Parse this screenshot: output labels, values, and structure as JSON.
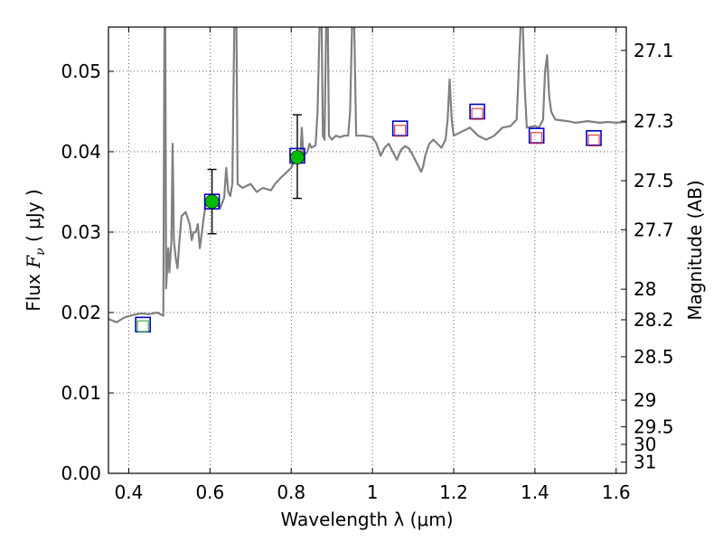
{
  "chart_data": {
    "type": "scatter",
    "xlabel": "Wavelength  λ (μm)",
    "ylabel_prefix": "Flux  ",
    "ylabel_var": "F",
    "ylabel_sub": "ν",
    "ylabel_suffix": "  ( μJy )",
    "y2label": "Magnitude (AB)",
    "xlim": [
      0.35,
      1.625
    ],
    "ylim": [
      0.0,
      0.0555
    ],
    "grid": true,
    "x_ticks": [
      0.4,
      0.6,
      0.8,
      1.0,
      1.2,
      1.4,
      1.6
    ],
    "x_tick_labels": [
      "0.4",
      "0.6",
      "0.8",
      "1",
      "1.2",
      "1.4",
      "1.6"
    ],
    "y_ticks": [
      0.0,
      0.01,
      0.02,
      0.03,
      0.04,
      0.05
    ],
    "y_tick_labels": [
      "0.00",
      "0.01",
      "0.02",
      "0.03",
      "0.04",
      "0.05"
    ],
    "y2_ticks": [
      {
        "flux": 0.0526,
        "label": "27.1"
      },
      {
        "flux": 0.0438,
        "label": "27.3"
      },
      {
        "flux": 0.0364,
        "label": "27.5"
      },
      {
        "flux": 0.0303,
        "label": "27.7"
      },
      {
        "flux": 0.0229,
        "label": "28"
      },
      {
        "flux": 0.0191,
        "label": "28.2"
      },
      {
        "flux": 0.0145,
        "label": "28.5"
      },
      {
        "flux": 0.0091,
        "label": "29"
      },
      {
        "flux": 0.0058,
        "label": "29.5"
      },
      {
        "flux": 0.0036,
        "label": "30"
      },
      {
        "flux": 0.0014,
        "label": "31"
      }
    ],
    "series": [
      {
        "name": "model_spectrum",
        "style": "line",
        "color": "#808080",
        "points": [
          [
            0.35,
            0.0192
          ],
          [
            0.37,
            0.0188
          ],
          [
            0.39,
            0.0194
          ],
          [
            0.41,
            0.0197
          ],
          [
            0.43,
            0.0199
          ],
          [
            0.45,
            0.0198
          ],
          [
            0.47,
            0.02
          ],
          [
            0.485,
            0.0196
          ],
          [
            0.488,
            0.056
          ],
          [
            0.49,
            0.056
          ],
          [
            0.492,
            0.023
          ],
          [
            0.497,
            0.028
          ],
          [
            0.5,
            0.025
          ],
          [
            0.505,
            0.029
          ],
          [
            0.508,
            0.041
          ],
          [
            0.511,
            0.029
          ],
          [
            0.515,
            0.027
          ],
          [
            0.52,
            0.0255
          ],
          [
            0.525,
            0.029
          ],
          [
            0.53,
            0.032
          ],
          [
            0.54,
            0.0325
          ],
          [
            0.55,
            0.031
          ],
          [
            0.555,
            0.029
          ],
          [
            0.56,
            0.03
          ],
          [
            0.565,
            0.03
          ],
          [
            0.57,
            0.031
          ],
          [
            0.575,
            0.028
          ],
          [
            0.58,
            0.03
          ],
          [
            0.585,
            0.032
          ],
          [
            0.59,
            0.0335
          ],
          [
            0.6,
            0.034
          ],
          [
            0.615,
            0.0335
          ],
          [
            0.625,
            0.033
          ],
          [
            0.635,
            0.0343
          ],
          [
            0.64,
            0.038
          ],
          [
            0.645,
            0.035
          ],
          [
            0.65,
            0.0345
          ],
          [
            0.655,
            0.036
          ],
          [
            0.66,
            0.056
          ],
          [
            0.665,
            0.056
          ],
          [
            0.668,
            0.036
          ],
          [
            0.68,
            0.0355
          ],
          [
            0.7,
            0.036
          ],
          [
            0.715,
            0.035
          ],
          [
            0.73,
            0.0355
          ],
          [
            0.75,
            0.0352
          ],
          [
            0.76,
            0.036
          ],
          [
            0.775,
            0.0368
          ],
          [
            0.79,
            0.0375
          ],
          [
            0.8,
            0.038
          ],
          [
            0.81,
            0.039
          ],
          [
            0.818,
            0.0395
          ],
          [
            0.822,
            0.0388
          ],
          [
            0.826,
            0.043
          ],
          [
            0.83,
            0.0395
          ],
          [
            0.84,
            0.04
          ],
          [
            0.845,
            0.041
          ],
          [
            0.85,
            0.0405
          ],
          [
            0.86,
            0.0408
          ],
          [
            0.865,
            0.045
          ],
          [
            0.87,
            0.056
          ],
          [
            0.875,
            0.056
          ],
          [
            0.878,
            0.042
          ],
          [
            0.882,
            0.0415
          ],
          [
            0.886,
            0.056
          ],
          [
            0.89,
            0.056
          ],
          [
            0.893,
            0.042
          ],
          [
            0.9,
            0.0415
          ],
          [
            0.91,
            0.042
          ],
          [
            0.92,
            0.0418
          ],
          [
            0.93,
            0.042
          ],
          [
            0.94,
            0.042
          ],
          [
            0.945,
            0.045
          ],
          [
            0.95,
            0.056
          ],
          [
            0.955,
            0.056
          ],
          [
            0.96,
            0.042
          ],
          [
            0.98,
            0.042
          ],
          [
            1.0,
            0.0418
          ],
          [
            1.01,
            0.041
          ],
          [
            1.02,
            0.0395
          ],
          [
            1.03,
            0.0405
          ],
          [
            1.04,
            0.041
          ],
          [
            1.05,
            0.04
          ],
          [
            1.06,
            0.039
          ],
          [
            1.07,
            0.0402
          ],
          [
            1.08,
            0.0407
          ],
          [
            1.09,
            0.0404
          ],
          [
            1.1,
            0.0395
          ],
          [
            1.11,
            0.0385
          ],
          [
            1.12,
            0.0375
          ],
          [
            1.125,
            0.0382
          ],
          [
            1.13,
            0.0395
          ],
          [
            1.14,
            0.041
          ],
          [
            1.15,
            0.0415
          ],
          [
            1.16,
            0.041
          ],
          [
            1.17,
            0.0405
          ],
          [
            1.18,
            0.0415
          ],
          [
            1.185,
            0.044
          ],
          [
            1.19,
            0.049
          ],
          [
            1.195,
            0.044
          ],
          [
            1.2,
            0.042
          ],
          [
            1.22,
            0.0425
          ],
          [
            1.24,
            0.043
          ],
          [
            1.26,
            0.042
          ],
          [
            1.28,
            0.0415
          ],
          [
            1.3,
            0.042
          ],
          [
            1.32,
            0.043
          ],
          [
            1.34,
            0.0432
          ],
          [
            1.355,
            0.044
          ],
          [
            1.36,
            0.05
          ],
          [
            1.365,
            0.056
          ],
          [
            1.37,
            0.056
          ],
          [
            1.375,
            0.048
          ],
          [
            1.38,
            0.043
          ],
          [
            1.4,
            0.0432
          ],
          [
            1.41,
            0.043
          ],
          [
            1.42,
            0.044
          ],
          [
            1.425,
            0.05
          ],
          [
            1.43,
            0.052
          ],
          [
            1.435,
            0.047
          ],
          [
            1.44,
            0.045
          ],
          [
            1.45,
            0.044
          ],
          [
            1.48,
            0.0438
          ],
          [
            1.5,
            0.0436
          ],
          [
            1.53,
            0.0438
          ],
          [
            1.56,
            0.0436
          ],
          [
            1.58,
            0.0437
          ],
          [
            1.6,
            0.0436
          ],
          [
            1.625,
            0.0437
          ]
        ]
      },
      {
        "name": "model_synthetic_photometry",
        "style": "open_square",
        "color": "#0000cc",
        "points": [
          [
            0.435,
            0.0185
          ],
          [
            0.605,
            0.0338
          ],
          [
            0.815,
            0.0395
          ],
          [
            1.068,
            0.0429
          ],
          [
            1.258,
            0.045
          ],
          [
            1.404,
            0.042
          ],
          [
            1.545,
            0.0417
          ]
        ]
      },
      {
        "name": "upper_limits",
        "style": "open_square",
        "color": "#dd3333",
        "points": [
          [
            1.068,
            0.0426
          ],
          [
            1.258,
            0.0447
          ],
          [
            1.404,
            0.0417
          ],
          [
            1.545,
            0.0414
          ]
        ]
      },
      {
        "name": "non_detection",
        "style": "open_square",
        "color": "#33aa33",
        "points": [
          [
            0.435,
            0.0183
          ]
        ]
      },
      {
        "name": "observed_flux",
        "style": "filled_circle_errorbar",
        "color": "#00bb00",
        "points": [
          {
            "x": 0.605,
            "y": 0.0338,
            "err_low": 0.004,
            "err_high": 0.004
          },
          {
            "x": 0.815,
            "y": 0.0393,
            "err_low": 0.0051,
            "err_high": 0.0053
          }
        ]
      }
    ]
  },
  "colors": {
    "spectrum": "#808080",
    "model_square": "#0000cc",
    "upper_limit": "#dd3333",
    "non_detection": "#33aa33",
    "observed": "#00bb00",
    "grid": "#000000"
  }
}
